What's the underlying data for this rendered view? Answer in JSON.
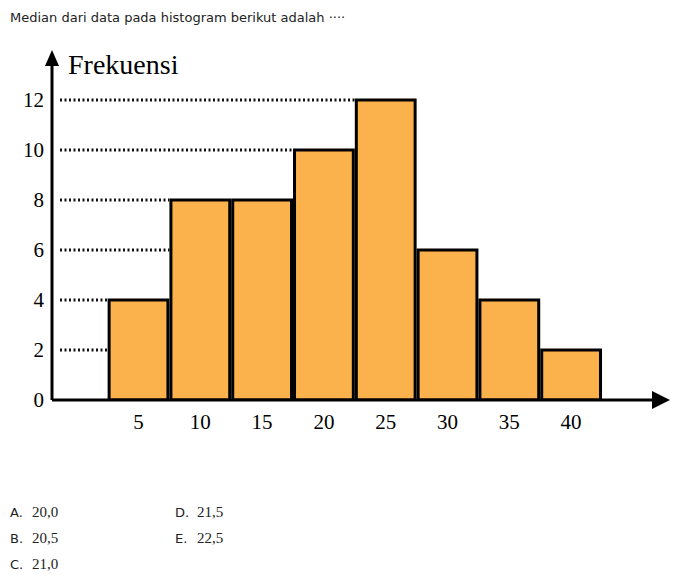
{
  "question": "Median dari data pada histogram berikut adalah ····",
  "choices": [
    {
      "letter": "A.",
      "text": "20,0"
    },
    {
      "letter": "B.",
      "text": "20,5"
    },
    {
      "letter": "C.",
      "text": "21,0"
    },
    {
      "letter": "D.",
      "text": "21,5"
    },
    {
      "letter": "E.",
      "text": "22,5"
    }
  ],
  "chart_data": {
    "type": "histogram",
    "y_label": "Frekuensi",
    "bins": [
      2.5,
      7.5,
      12.5,
      17.5,
      22.5,
      27.5,
      32.5,
      37.5,
      42.5
    ],
    "values": [
      4,
      8,
      8,
      10,
      12,
      6,
      4,
      2
    ],
    "color": "#fbb24c",
    "xlim": [
      -2,
      48
    ],
    "xticks": [
      5,
      10,
      15,
      20,
      25,
      30,
      35,
      40
    ],
    "ylim": [
      0,
      14
    ],
    "yticks": [
      0,
      2,
      4,
      6,
      8,
      10,
      12
    ],
    "grid": true
  }
}
